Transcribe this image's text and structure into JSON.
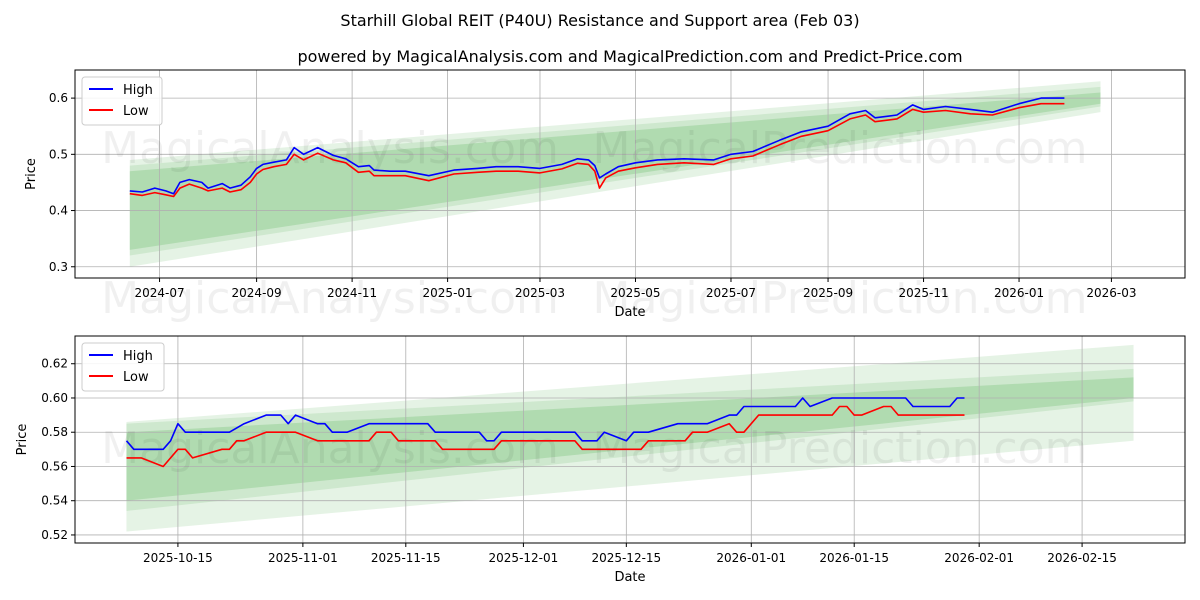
{
  "title": "Starhill Global REIT (P40U) Resistance and Support area (Feb 03)",
  "subtitle": "powered by MagicalAnalysis.com and MagicalPrediction.com and Predict-Price.com",
  "watermarks": [
    "MagicalAnalysis.com",
    "MagicalPrediction.com"
  ],
  "colors": {
    "high": "#0000ff",
    "low": "#ff0000",
    "band": "#2ca02c"
  },
  "chart_data": [
    {
      "type": "line",
      "xlabel": "Date",
      "ylabel": "Price",
      "xlim": [
        "2024-05-08",
        "2026-04-17"
      ],
      "ylim": [
        0.28,
        0.65
      ],
      "xticks": [
        [
          "2024-07-01",
          "2024-07"
        ],
        [
          "2024-09-01",
          "2024-09"
        ],
        [
          "2024-11-01",
          "2024-11"
        ],
        [
          "2025-01-01",
          "2025-01"
        ],
        [
          "2025-03-01",
          "2025-03"
        ],
        [
          "2025-05-01",
          "2025-05"
        ],
        [
          "2025-07-01",
          "2025-07"
        ],
        [
          "2025-09-01",
          "2025-09"
        ],
        [
          "2025-11-01",
          "2025-11"
        ],
        [
          "2026-01-01",
          "2026-01"
        ],
        [
          "2026-03-01",
          "2026-03"
        ]
      ],
      "yticks": [
        [
          "0.3",
          "0.3"
        ],
        [
          "0.4",
          "0.4"
        ],
        [
          "0.5",
          "0.5"
        ],
        [
          "0.6",
          "0.6"
        ]
      ],
      "grid": true,
      "legend": "top-left",
      "bands": {
        "start": "2024-06-12",
        "end": "2026-02-22",
        "ranges": [
          [
            0.3,
            0.49,
            0.575,
            0.63
          ],
          [
            0.32,
            0.48,
            0.585,
            0.62
          ],
          [
            0.33,
            0.47,
            0.59,
            0.61
          ]
        ]
      },
      "series": [
        {
          "name": "High",
          "points": [
            [
              "2024-06-12",
              0.435
            ],
            [
              "2024-06-20",
              0.433
            ],
            [
              "2024-06-28",
              0.44
            ],
            [
              "2024-07-05",
              0.435
            ],
            [
              "2024-07-10",
              0.43
            ],
            [
              "2024-07-14",
              0.45
            ],
            [
              "2024-07-20",
              0.455
            ],
            [
              "2024-07-28",
              0.45
            ],
            [
              "2024-08-01",
              0.44
            ],
            [
              "2024-08-10",
              0.448
            ],
            [
              "2024-08-15",
              0.44
            ],
            [
              "2024-08-22",
              0.445
            ],
            [
              "2024-08-28",
              0.46
            ],
            [
              "2024-09-01",
              0.475
            ],
            [
              "2024-09-05",
              0.482
            ],
            [
              "2024-09-12",
              0.486
            ],
            [
              "2024-09-20",
              0.49
            ],
            [
              "2024-09-25",
              0.512
            ],
            [
              "2024-10-01",
              0.5
            ],
            [
              "2024-10-10",
              0.512
            ],
            [
              "2024-10-20",
              0.498
            ],
            [
              "2024-10-28",
              0.492
            ],
            [
              "2024-11-05",
              0.478
            ],
            [
              "2024-11-12",
              0.48
            ],
            [
              "2024-11-15",
              0.472
            ],
            [
              "2024-11-25",
              0.47
            ],
            [
              "2024-12-05",
              0.47
            ],
            [
              "2024-12-20",
              0.462
            ],
            [
              "2025-01-05",
              0.472
            ],
            [
              "2025-01-20",
              0.475
            ],
            [
              "2025-02-01",
              0.478
            ],
            [
              "2025-02-15",
              0.478
            ],
            [
              "2025-03-01",
              0.475
            ],
            [
              "2025-03-15",
              0.482
            ],
            [
              "2025-03-25",
              0.492
            ],
            [
              "2025-04-01",
              0.49
            ],
            [
              "2025-04-05",
              0.48
            ],
            [
              "2025-04-08",
              0.458
            ],
            [
              "2025-04-12",
              0.465
            ],
            [
              "2025-04-20",
              0.478
            ],
            [
              "2025-05-01",
              0.485
            ],
            [
              "2025-05-15",
              0.49
            ],
            [
              "2025-06-01",
              0.492
            ],
            [
              "2025-06-20",
              0.49
            ],
            [
              "2025-07-01",
              0.5
            ],
            [
              "2025-07-15",
              0.505
            ],
            [
              "2025-08-01",
              0.525
            ],
            [
              "2025-08-15",
              0.54
            ],
            [
              "2025-09-01",
              0.55
            ],
            [
              "2025-09-15",
              0.572
            ],
            [
              "2025-09-25",
              0.578
            ],
            [
              "2025-10-01",
              0.565
            ],
            [
              "2025-10-15",
              0.57
            ],
            [
              "2025-10-25",
              0.588
            ],
            [
              "2025-11-01",
              0.58
            ],
            [
              "2025-11-15",
              0.585
            ],
            [
              "2025-12-01",
              0.58
            ],
            [
              "2025-12-15",
              0.575
            ],
            [
              "2026-01-01",
              0.59
            ],
            [
              "2026-01-15",
              0.6
            ],
            [
              "2026-01-30",
              0.6
            ]
          ]
        },
        {
          "name": "Low",
          "points": [
            [
              "2024-06-12",
              0.43
            ],
            [
              "2024-06-20",
              0.427
            ],
            [
              "2024-06-28",
              0.432
            ],
            [
              "2024-07-05",
              0.428
            ],
            [
              "2024-07-10",
              0.425
            ],
            [
              "2024-07-14",
              0.44
            ],
            [
              "2024-07-20",
              0.447
            ],
            [
              "2024-07-28",
              0.44
            ],
            [
              "2024-08-01",
              0.435
            ],
            [
              "2024-08-10",
              0.44
            ],
            [
              "2024-08-15",
              0.433
            ],
            [
              "2024-08-22",
              0.437
            ],
            [
              "2024-08-28",
              0.45
            ],
            [
              "2024-09-01",
              0.465
            ],
            [
              "2024-09-05",
              0.473
            ],
            [
              "2024-09-12",
              0.478
            ],
            [
              "2024-09-20",
              0.482
            ],
            [
              "2024-09-25",
              0.5
            ],
            [
              "2024-10-01",
              0.49
            ],
            [
              "2024-10-10",
              0.502
            ],
            [
              "2024-10-20",
              0.49
            ],
            [
              "2024-10-28",
              0.485
            ],
            [
              "2024-11-05",
              0.468
            ],
            [
              "2024-11-12",
              0.47
            ],
            [
              "2024-11-15",
              0.462
            ],
            [
              "2024-11-25",
              0.462
            ],
            [
              "2024-12-05",
              0.462
            ],
            [
              "2024-12-20",
              0.453
            ],
            [
              "2025-01-05",
              0.465
            ],
            [
              "2025-01-20",
              0.468
            ],
            [
              "2025-02-01",
              0.47
            ],
            [
              "2025-02-15",
              0.47
            ],
            [
              "2025-03-01",
              0.467
            ],
            [
              "2025-03-15",
              0.474
            ],
            [
              "2025-03-25",
              0.484
            ],
            [
              "2025-04-01",
              0.482
            ],
            [
              "2025-04-05",
              0.47
            ],
            [
              "2025-04-08",
              0.44
            ],
            [
              "2025-04-12",
              0.458
            ],
            [
              "2025-04-20",
              0.47
            ],
            [
              "2025-05-01",
              0.476
            ],
            [
              "2025-05-15",
              0.482
            ],
            [
              "2025-06-01",
              0.485
            ],
            [
              "2025-06-20",
              0.482
            ],
            [
              "2025-07-01",
              0.492
            ],
            [
              "2025-07-15",
              0.497
            ],
            [
              "2025-08-01",
              0.517
            ],
            [
              "2025-08-15",
              0.532
            ],
            [
              "2025-09-01",
              0.542
            ],
            [
              "2025-09-15",
              0.563
            ],
            [
              "2025-09-25",
              0.57
            ],
            [
              "2025-10-01",
              0.558
            ],
            [
              "2025-10-15",
              0.563
            ],
            [
              "2025-10-25",
              0.58
            ],
            [
              "2025-11-01",
              0.575
            ],
            [
              "2025-11-15",
              0.578
            ],
            [
              "2025-12-01",
              0.572
            ],
            [
              "2025-12-15",
              0.57
            ],
            [
              "2026-01-01",
              0.583
            ],
            [
              "2026-01-15",
              0.59
            ],
            [
              "2026-01-30",
              0.59
            ]
          ]
        }
      ]
    },
    {
      "type": "line",
      "xlabel": "Date",
      "ylabel": "Price",
      "xlim": [
        "2025-10-01",
        "2026-03-01"
      ],
      "ylim": [
        0.5153,
        0.6362
      ],
      "xticks": [
        [
          "2025-10-15",
          "2025-10-15"
        ],
        [
          "2025-11-01",
          "2025-11-01"
        ],
        [
          "2025-11-15",
          "2025-11-15"
        ],
        [
          "2025-12-01",
          "2025-12-01"
        ],
        [
          "2025-12-15",
          "2025-12-15"
        ],
        [
          "2026-01-01",
          "2026-01-01"
        ],
        [
          "2026-01-15",
          "2026-01-15"
        ],
        [
          "2026-02-01",
          "2026-02-01"
        ],
        [
          "2026-02-15",
          "2026-02-15"
        ]
      ],
      "yticks": [
        [
          "0.52",
          "0.52"
        ],
        [
          "0.54",
          "0.54"
        ],
        [
          "0.56",
          "0.56"
        ],
        [
          "0.58",
          "0.58"
        ],
        [
          "0.60",
          "0.60"
        ],
        [
          "0.62",
          "0.62"
        ]
      ],
      "grid": true,
      "legend": "top-left",
      "bands": {
        "start": "2025-10-08",
        "end": "2026-02-22",
        "ranges": [
          [
            0.522,
            0.586,
            0.575,
            0.631
          ],
          [
            0.534,
            0.585,
            0.598,
            0.617
          ],
          [
            0.54,
            0.58,
            0.6,
            0.612
          ]
        ]
      },
      "series": [
        {
          "name": "High",
          "points": [
            [
              "2025-10-08",
              0.575
            ],
            [
              "2025-10-09",
              0.57
            ],
            [
              "2025-10-13",
              0.57
            ],
            [
              "2025-10-14",
              0.575
            ],
            [
              "2025-10-15",
              0.585
            ],
            [
              "2025-10-16",
              0.58
            ],
            [
              "2025-10-22",
              0.58
            ],
            [
              "2025-10-24",
              0.585
            ],
            [
              "2025-10-27",
              0.59
            ],
            [
              "2025-10-29",
              0.59
            ],
            [
              "2025-10-30",
              0.585
            ],
            [
              "2025-10-31",
              0.59
            ],
            [
              "2025-11-03",
              0.585
            ],
            [
              "2025-11-04",
              0.585
            ],
            [
              "2025-11-05",
              0.58
            ],
            [
              "2025-11-07",
              0.58
            ],
            [
              "2025-11-10",
              0.585
            ],
            [
              "2025-11-18",
              0.585
            ],
            [
              "2025-11-19",
              0.58
            ],
            [
              "2025-11-25",
              0.58
            ],
            [
              "2025-11-26",
              0.575
            ],
            [
              "2025-11-27",
              0.575
            ],
            [
              "2025-11-28",
              0.58
            ],
            [
              "2025-12-08",
              0.58
            ],
            [
              "2025-12-09",
              0.575
            ],
            [
              "2025-12-11",
              0.575
            ],
            [
              "2025-12-12",
              0.58
            ],
            [
              "2025-12-15",
              0.575
            ],
            [
              "2025-12-16",
              0.58
            ],
            [
              "2025-12-18",
              0.58
            ],
            [
              "2025-12-22",
              0.585
            ],
            [
              "2025-12-26",
              0.585
            ],
            [
              "2025-12-29",
              0.59
            ],
            [
              "2025-12-30",
              0.59
            ],
            [
              "2025-12-31",
              0.595
            ],
            [
              "2026-01-07",
              0.595
            ],
            [
              "2026-01-08",
              0.6
            ],
            [
              "2026-01-09",
              0.595
            ],
            [
              "2026-01-12",
              0.6
            ],
            [
              "2026-01-22",
              0.6
            ],
            [
              "2026-01-23",
              0.595
            ],
            [
              "2026-01-28",
              0.595
            ],
            [
              "2026-01-29",
              0.6
            ],
            [
              "2026-01-30",
              0.6
            ]
          ]
        },
        {
          "name": "Low",
          "points": [
            [
              "2025-10-08",
              0.565
            ],
            [
              "2025-10-10",
              0.565
            ],
            [
              "2025-10-13",
              0.56
            ],
            [
              "2025-10-15",
              0.57
            ],
            [
              "2025-10-16",
              0.57
            ],
            [
              "2025-10-17",
              0.565
            ],
            [
              "2025-10-21",
              0.57
            ],
            [
              "2025-10-22",
              0.57
            ],
            [
              "2025-10-23",
              0.575
            ],
            [
              "2025-10-24",
              0.575
            ],
            [
              "2025-10-27",
              0.58
            ],
            [
              "2025-10-31",
              0.58
            ],
            [
              "2025-11-03",
              0.575
            ],
            [
              "2025-11-10",
              0.575
            ],
            [
              "2025-11-11",
              0.58
            ],
            [
              "2025-11-13",
              0.58
            ],
            [
              "2025-11-14",
              0.575
            ],
            [
              "2025-11-19",
              0.575
            ],
            [
              "2025-11-20",
              0.57
            ],
            [
              "2025-11-27",
              0.57
            ],
            [
              "2025-11-28",
              0.575
            ],
            [
              "2025-12-08",
              0.575
            ],
            [
              "2025-12-09",
              0.57
            ],
            [
              "2025-12-17",
              0.57
            ],
            [
              "2025-12-18",
              0.575
            ],
            [
              "2025-12-23",
              0.575
            ],
            [
              "2025-12-24",
              0.58
            ],
            [
              "2025-12-26",
              0.58
            ],
            [
              "2025-12-29",
              0.585
            ],
            [
              "2025-12-30",
              0.58
            ],
            [
              "2025-12-31",
              0.58
            ],
            [
              "2026-01-02",
              0.59
            ],
            [
              "2026-01-12",
              0.59
            ],
            [
              "2026-01-13",
              0.595
            ],
            [
              "2026-01-14",
              0.595
            ],
            [
              "2026-01-15",
              0.59
            ],
            [
              "2026-01-16",
              0.59
            ],
            [
              "2026-01-19",
              0.595
            ],
            [
              "2026-01-20",
              0.595
            ],
            [
              "2026-01-21",
              0.59
            ],
            [
              "2026-01-30",
              0.59
            ]
          ]
        }
      ]
    }
  ]
}
